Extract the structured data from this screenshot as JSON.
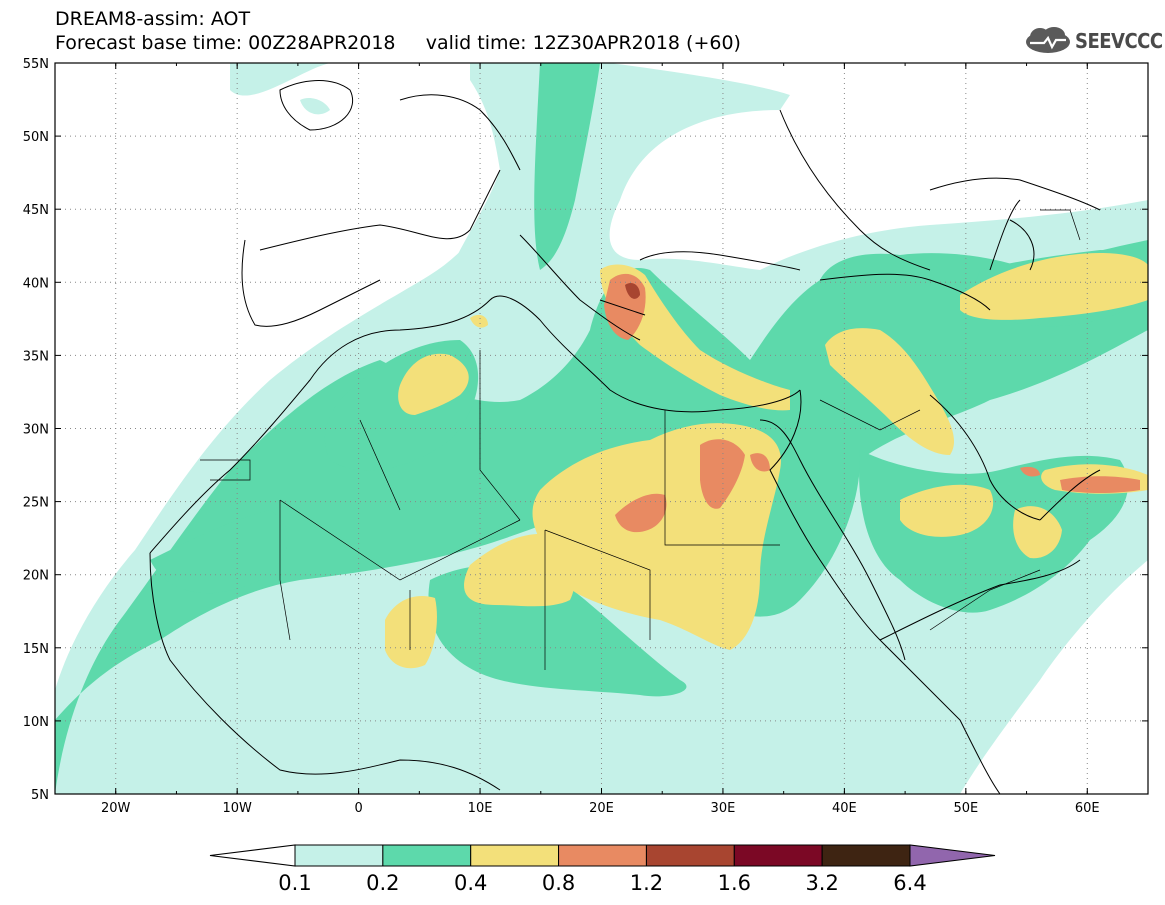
{
  "header": {
    "title_line1": "DREAM8-assim: AOT",
    "title_line2": "Forecast base time: 00Z28APR2018     valid time: 12Z30APR2018 (+60)",
    "logo_text": "SEEVCCC"
  },
  "map": {
    "lon_labels": [
      "20W",
      "10W",
      "0",
      "10E",
      "20E",
      "30E",
      "40E",
      "50E",
      "60E"
    ],
    "lat_labels": [
      "55N",
      "50N",
      "45N",
      "40N",
      "35N",
      "30N",
      "25N",
      "20N",
      "15N",
      "10N",
      "5N"
    ]
  },
  "colorbar": {
    "labels": [
      "0.1",
      "0.2",
      "0.4",
      "0.8",
      "1.2",
      "1.6",
      "3.2",
      "6.4"
    ],
    "colors": [
      "#ffffff",
      "#c5f1e8",
      "#5dd9ab",
      "#f3e07a",
      "#e88a62",
      "#a84530",
      "#7b0825",
      "#3e2412",
      "#9166ad"
    ]
  },
  "colors": {
    "class1": "#c5f1e8",
    "class2": "#5dd9ab",
    "class3": "#f3e07a",
    "class4": "#e88a62",
    "class5": "#a84530"
  }
}
